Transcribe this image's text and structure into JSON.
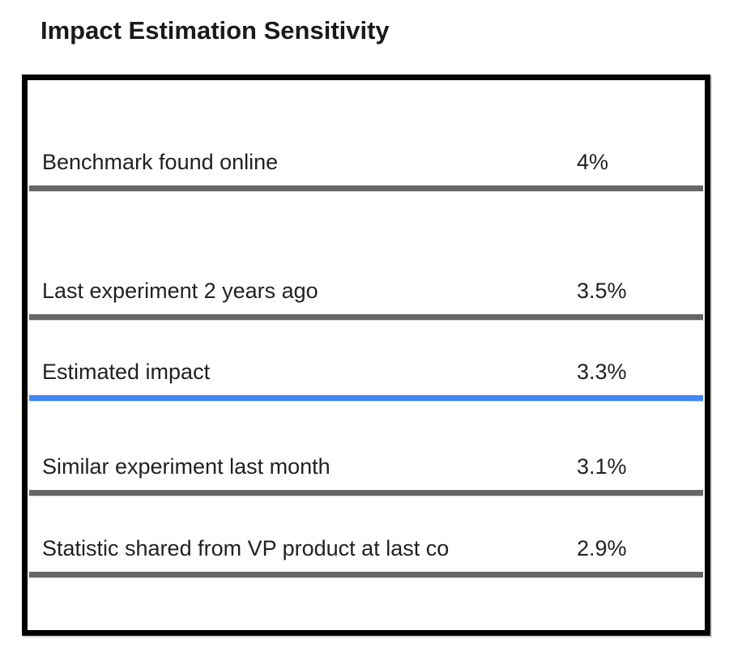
{
  "title": "Impact Estimation Sensitivity",
  "chart_data": {
    "type": "table",
    "title": "Impact Estimation Sensitivity",
    "categories": [
      "Benchmark found online",
      "Last experiment 2 years ago",
      "Estimated impact",
      "Similar experiment last month",
      "Statistic shared from VP product at last co"
    ],
    "values": [
      4.0,
      3.5,
      3.3,
      3.1,
      2.9
    ],
    "highlighted_row": "Estimated impact",
    "rows": [
      {
        "label": "Benchmark found online",
        "value_label": "4%",
        "value": 4.0,
        "highlight": false
      },
      {
        "label": "Last experiment 2 years ago",
        "value_label": "3.5%",
        "value": 3.5,
        "highlight": false
      },
      {
        "label": "Estimated impact",
        "value_label": "3.3%",
        "value": 3.3,
        "highlight": true
      },
      {
        "label": "Similar experiment last month",
        "value_label": "3.1%",
        "value": 3.1,
        "highlight": false
      },
      {
        "label": "Statistic shared from VP product at last co",
        "value_label": "2.9%",
        "value": 2.9,
        "highlight": false
      }
    ],
    "layout": {
      "value_column_align": "left",
      "grid": "off",
      "legend": "none",
      "rows_sorted": "descending by value"
    },
    "colors": {
      "divider_gray": "#666666",
      "highlight_blue": "#4285F4",
      "frame_border": "#000000",
      "text": "#212121",
      "title_text": "#1a1a1a",
      "background": "#ffffff"
    }
  }
}
